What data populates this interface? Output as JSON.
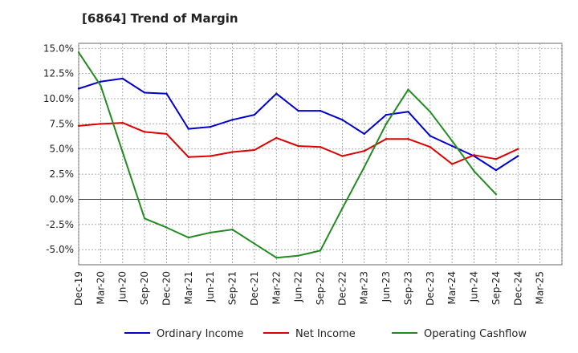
{
  "chart_data": {
    "type": "line",
    "title": "[6864]  Trend of Margin",
    "xlabel": "",
    "ylabel": "",
    "ylim": [
      -6.5,
      15.5
    ],
    "y_ticks": [
      "15.0%",
      "12.5%",
      "10.0%",
      "7.5%",
      "5.0%",
      "2.5%",
      "0.0%",
      "-2.5%",
      "-5.0%"
    ],
    "y_tick_values": [
      15,
      12.5,
      10,
      7.5,
      5,
      2.5,
      0,
      -2.5,
      -5
    ],
    "categories": [
      "Dec-19",
      "Mar-20",
      "Jun-20",
      "Sep-20",
      "Dec-20",
      "Mar-21",
      "Jun-21",
      "Sep-21",
      "Dec-21",
      "Mar-22",
      "Jun-22",
      "Sep-22",
      "Dec-22",
      "Mar-23",
      "Jun-23",
      "Sep-23",
      "Dec-23",
      "Mar-24",
      "Jun-24",
      "Sep-24",
      "Dec-24",
      "Mar-25"
    ],
    "grid": true,
    "legend_position": "bottom",
    "series": [
      {
        "name": "Ordinary Income",
        "color": "#0000cc",
        "values": [
          11.0,
          11.7,
          12.0,
          10.6,
          10.5,
          7.0,
          7.2,
          7.9,
          8.4,
          10.5,
          8.8,
          8.8,
          7.9,
          6.5,
          8.4,
          8.7,
          6.3,
          5.3,
          4.3,
          2.9,
          4.3,
          null
        ]
      },
      {
        "name": "Net Income",
        "color": "#dd0000",
        "values": [
          7.3,
          7.5,
          7.6,
          6.7,
          6.5,
          4.2,
          4.3,
          4.7,
          4.9,
          6.1,
          5.3,
          5.2,
          4.3,
          4.8,
          6.0,
          6.0,
          5.2,
          3.5,
          4.4,
          4.0,
          5.0,
          null
        ]
      },
      {
        "name": "Operating Cashflow",
        "color": "#228b22",
        "values": [
          14.6,
          11.3,
          4.7,
          -1.9,
          -2.8,
          -3.8,
          -3.3,
          -3.0,
          -4.4,
          -5.8,
          -5.6,
          -5.1,
          -0.9,
          3.2,
          7.5,
          10.9,
          8.7,
          5.8,
          2.8,
          0.5,
          null,
          null
        ]
      }
    ]
  }
}
